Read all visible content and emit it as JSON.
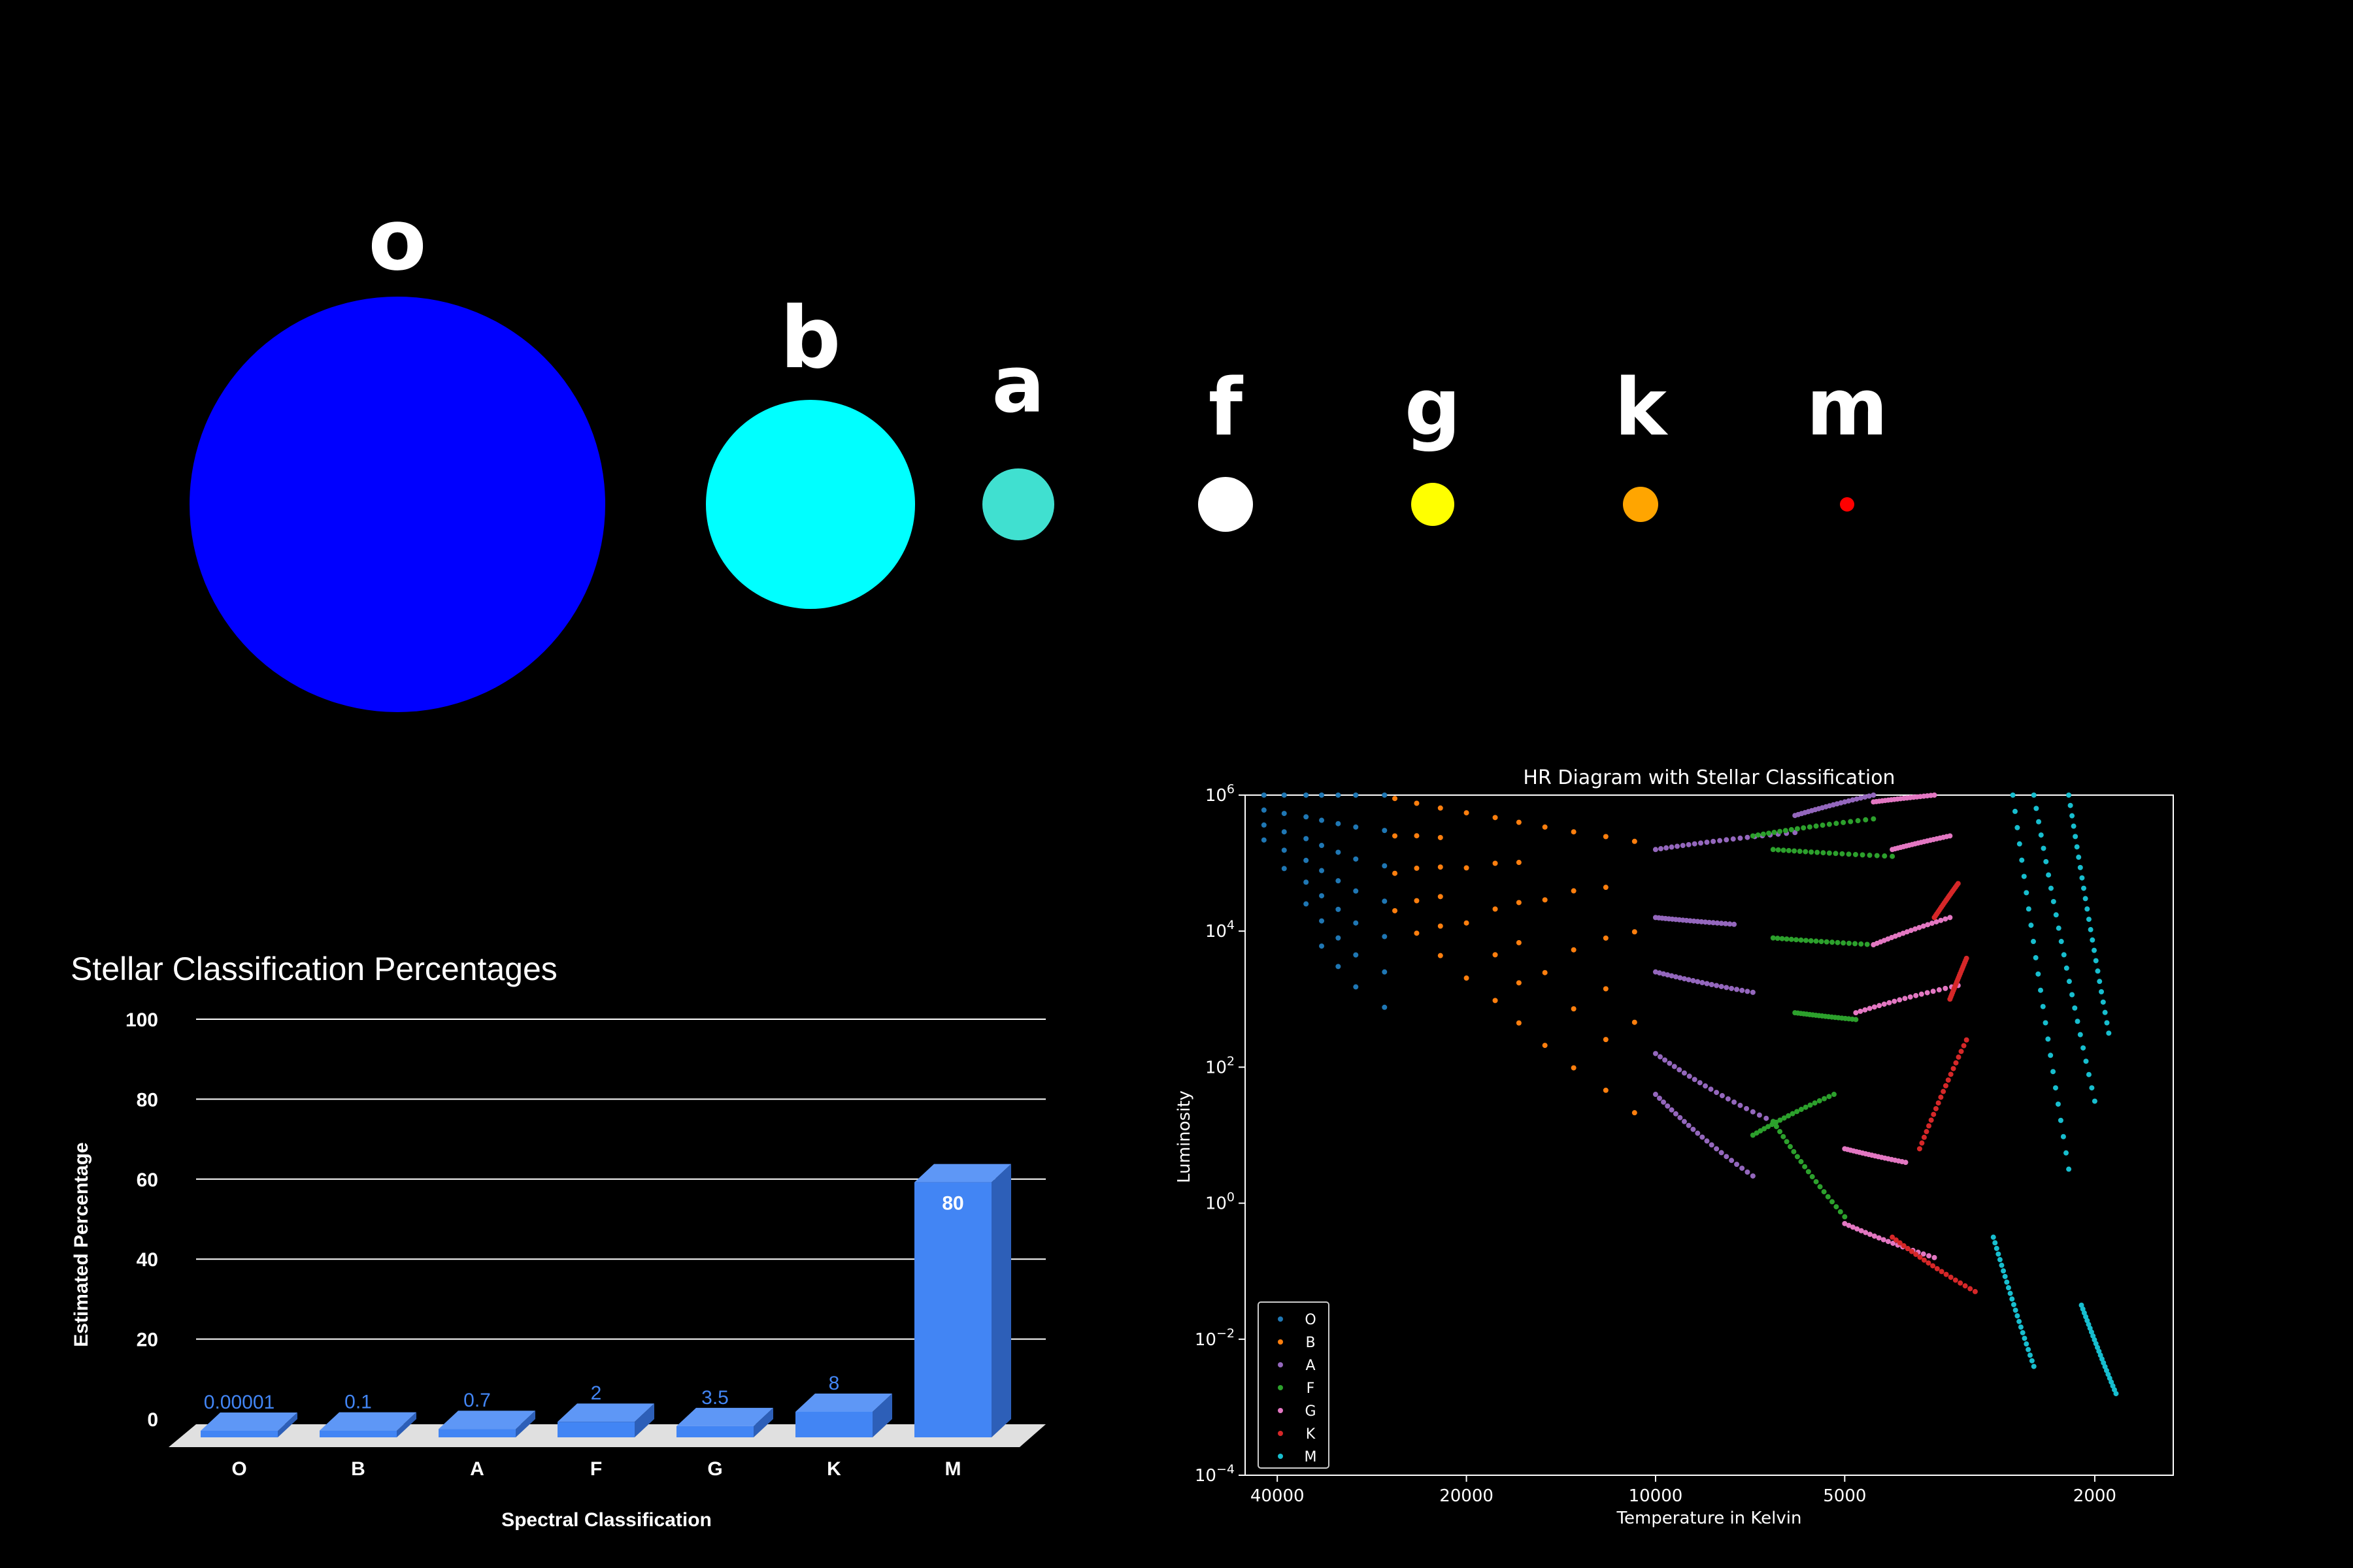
{
  "star_classes": [
    {
      "label": "o",
      "color": "#0000ff"
    },
    {
      "label": "b",
      "color": "#00ffff"
    },
    {
      "label": "a",
      "color": "#40e0d0"
    },
    {
      "label": "f",
      "color": "#ffffff"
    },
    {
      "label": "g",
      "color": "#ffff00"
    },
    {
      "label": "k",
      "color": "#ffa500"
    },
    {
      "label": "m",
      "color": "#ff0000"
    }
  ],
  "chart_data": [
    {
      "type": "bar",
      "title": "Stellar Classification Percentages",
      "xlabel": "Spectral Classification",
      "ylabel": "Estimated Percentage",
      "ylim": [
        0,
        100
      ],
      "yticks": [
        0,
        20,
        40,
        60,
        80,
        100
      ],
      "categories": [
        "O",
        "B",
        "A",
        "F",
        "G",
        "K",
        "M"
      ],
      "values": [
        1e-05,
        0.1,
        0.7,
        2,
        3.5,
        8,
        80
      ],
      "value_labels": [
        "0.00001",
        "0.1",
        "0.7",
        "2",
        "3.5",
        "8",
        "80"
      ],
      "bar_color": "#4285f4",
      "grid": true
    },
    {
      "type": "scatter",
      "title": "HR Diagram with Stellar Classification",
      "xlabel": "Temperature in Kelvin",
      "ylabel": "Luminosity",
      "x_scale": "log",
      "x_inverted": true,
      "xlim": [
        45000,
        1500
      ],
      "xticks": [
        40000,
        20000,
        10000,
        5000,
        2000
      ],
      "y_scale": "log",
      "ylim": [
        0.0001,
        1000000
      ],
      "yticks": [
        0.0001,
        0.01,
        1,
        100,
        10000,
        1000000
      ],
      "ytick_labels": [
        {
          "base": "10",
          "exp": "−4"
        },
        {
          "base": "10",
          "exp": "−2"
        },
        {
          "base": "10",
          "exp": "0"
        },
        {
          "base": "10",
          "exp": "2"
        },
        {
          "base": "10",
          "exp": "4"
        },
        {
          "base": "10",
          "exp": "6"
        }
      ],
      "legend_position": "lower-left",
      "series": [
        {
          "name": "O",
          "color": "#1f77b4",
          "temp_range": [
            30000,
            42000
          ],
          "lum_range": [
            1000,
            1000000
          ]
        },
        {
          "name": "B",
          "color": "#ff7f0e",
          "temp_range": [
            10500,
            29000
          ],
          "lum_range": [
            40,
            1000000
          ]
        },
        {
          "name": "A",
          "color": "#9467bd",
          "temp_range": [
            5000,
            10000
          ],
          "lum_range": [
            1,
            700000
          ]
        },
        {
          "name": "F",
          "color": "#2ca02c",
          "temp_range": [
            3800,
            7500
          ],
          "lum_range": [
            0.3,
            300000
          ]
        },
        {
          "name": "G",
          "color": "#e377c2",
          "temp_range": [
            3200,
            6000
          ],
          "lum_range": [
            0.3,
            700000
          ]
        },
        {
          "name": "K",
          "color": "#d62728",
          "temp_range": [
            2900,
            5200
          ],
          "lum_range": [
            0.03,
            500000
          ]
        },
        {
          "name": "M",
          "color": "#17becf",
          "temp_range": [
            1800,
            3000
          ],
          "lum_range": [
            0.001,
            1000000
          ]
        }
      ]
    }
  ]
}
